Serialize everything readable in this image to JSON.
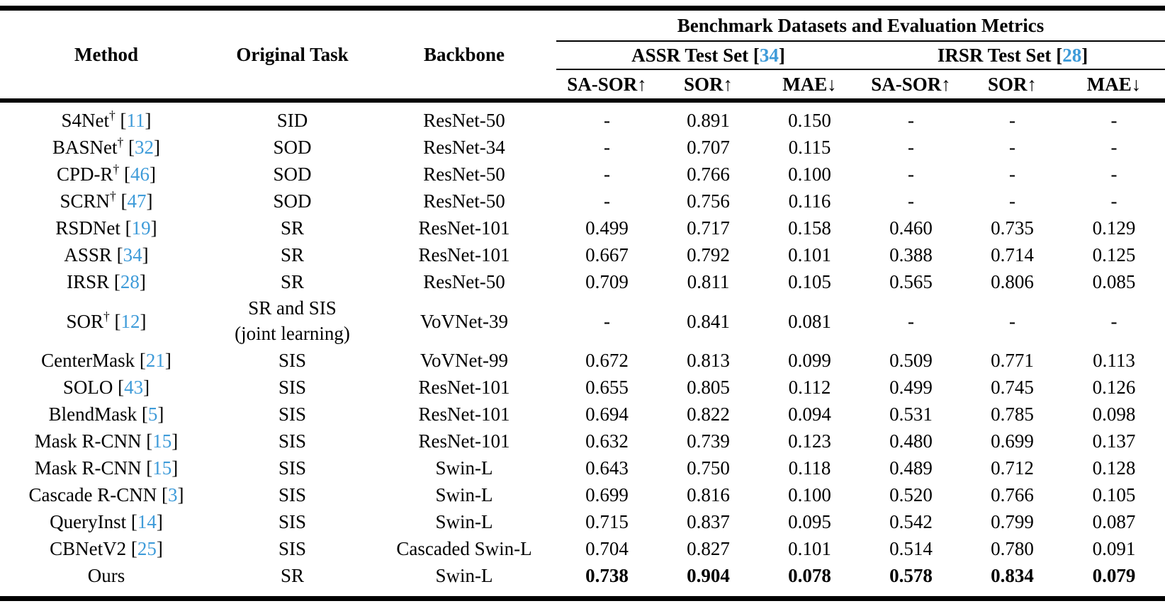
{
  "colors": {
    "citation_blue": "#3e9bd9",
    "text": "#000000"
  },
  "symbols": {
    "dagger": "†",
    "bracket_open": "[",
    "bracket_close": "]"
  },
  "header": {
    "col_method": "Method",
    "col_task": "Original Task",
    "col_backbone": "Backbone",
    "group_title": "Benchmark Datasets and Evaluation Metrics",
    "assr_label": "ASSR Test Set",
    "assr_cite": "34",
    "irsr_label": "IRSR Test Set",
    "irsr_cite": "28",
    "metrics": [
      "SA-SOR↑",
      "SOR↑",
      "MAE↓",
      "SA-SOR↑",
      "SOR↑",
      "MAE↓"
    ]
  },
  "rows": [
    {
      "method": "S4Net",
      "dagger": true,
      "cite": "11",
      "task": "SID",
      "task2": "",
      "backbone": "ResNet-50",
      "bold": false,
      "values": [
        "-",
        "0.891",
        "0.150",
        "-",
        "-",
        "-"
      ]
    },
    {
      "method": "BASNet",
      "dagger": true,
      "cite": "32",
      "task": "SOD",
      "task2": "",
      "backbone": "ResNet-34",
      "bold": false,
      "values": [
        "-",
        "0.707",
        "0.115",
        "-",
        "-",
        "-"
      ]
    },
    {
      "method": "CPD-R",
      "dagger": true,
      "cite": "46",
      "task": "SOD",
      "task2": "",
      "backbone": "ResNet-50",
      "bold": false,
      "values": [
        "-",
        "0.766",
        "0.100",
        "-",
        "-",
        "-"
      ]
    },
    {
      "method": "SCRN",
      "dagger": true,
      "cite": "47",
      "task": "SOD",
      "task2": "",
      "backbone": "ResNet-50",
      "bold": false,
      "values": [
        "-",
        "0.756",
        "0.116",
        "-",
        "-",
        "-"
      ]
    },
    {
      "method": "RSDNet",
      "dagger": false,
      "cite": "19",
      "task": "SR",
      "task2": "",
      "backbone": "ResNet-101",
      "bold": false,
      "values": [
        "0.499",
        "0.717",
        "0.158",
        "0.460",
        "0.735",
        "0.129"
      ]
    },
    {
      "method": "ASSR",
      "dagger": false,
      "cite": "34",
      "task": "SR",
      "task2": "",
      "backbone": "ResNet-101",
      "bold": false,
      "values": [
        "0.667",
        "0.792",
        "0.101",
        "0.388",
        "0.714",
        "0.125"
      ]
    },
    {
      "method": "IRSR",
      "dagger": false,
      "cite": "28",
      "task": "SR",
      "task2": "",
      "backbone": "ResNet-50",
      "bold": false,
      "values": [
        "0.709",
        "0.811",
        "0.105",
        "0.565",
        "0.806",
        "0.085"
      ]
    },
    {
      "method": "SOR",
      "dagger": true,
      "cite": "12",
      "task": "SR and SIS",
      "task2": "(joint learning)",
      "backbone": "VoVNet-39",
      "bold": false,
      "values": [
        "-",
        "0.841",
        "0.081",
        "-",
        "-",
        "-"
      ]
    },
    {
      "method": "CenterMask",
      "dagger": false,
      "cite": "21",
      "task": "SIS",
      "task2": "",
      "backbone": "VoVNet-99",
      "bold": false,
      "values": [
        "0.672",
        "0.813",
        "0.099",
        "0.509",
        "0.771",
        "0.113"
      ]
    },
    {
      "method": "SOLO",
      "dagger": false,
      "cite": "43",
      "task": "SIS",
      "task2": "",
      "backbone": "ResNet-101",
      "bold": false,
      "values": [
        "0.655",
        "0.805",
        "0.112",
        "0.499",
        "0.745",
        "0.126"
      ]
    },
    {
      "method": "BlendMask",
      "dagger": false,
      "cite": "5",
      "task": "SIS",
      "task2": "",
      "backbone": "ResNet-101",
      "bold": false,
      "values": [
        "0.694",
        "0.822",
        "0.094",
        "0.531",
        "0.785",
        "0.098"
      ]
    },
    {
      "method": "Mask R-CNN",
      "dagger": false,
      "cite": "15",
      "task": "SIS",
      "task2": "",
      "backbone": "ResNet-101",
      "bold": false,
      "values": [
        "0.632",
        "0.739",
        "0.123",
        "0.480",
        "0.699",
        "0.137"
      ]
    },
    {
      "method": "Mask R-CNN",
      "dagger": false,
      "cite": "15",
      "task": "SIS",
      "task2": "",
      "backbone": "Swin-L",
      "bold": false,
      "values": [
        "0.643",
        "0.750",
        "0.118",
        "0.489",
        "0.712",
        "0.128"
      ]
    },
    {
      "method": "Cascade R-CNN",
      "dagger": false,
      "cite": "3",
      "task": "SIS",
      "task2": "",
      "backbone": "Swin-L",
      "bold": false,
      "values": [
        "0.699",
        "0.816",
        "0.100",
        "0.520",
        "0.766",
        "0.105"
      ]
    },
    {
      "method": "QueryInst",
      "dagger": false,
      "cite": "14",
      "task": "SIS",
      "task2": "",
      "backbone": "Swin-L",
      "bold": false,
      "values": [
        "0.715",
        "0.837",
        "0.095",
        "0.542",
        "0.799",
        "0.087"
      ]
    },
    {
      "method": "CBNetV2",
      "dagger": false,
      "cite": "25",
      "task": "SIS",
      "task2": "",
      "backbone": "Cascaded Swin-L",
      "bold": false,
      "values": [
        "0.704",
        "0.827",
        "0.101",
        "0.514",
        "0.780",
        "0.091"
      ]
    },
    {
      "method": "Ours",
      "dagger": false,
      "cite": "",
      "task": "SR",
      "task2": "",
      "backbone": "Swin-L",
      "bold": true,
      "values": [
        "0.738",
        "0.904",
        "0.078",
        "0.578",
        "0.834",
        "0.079"
      ]
    }
  ]
}
